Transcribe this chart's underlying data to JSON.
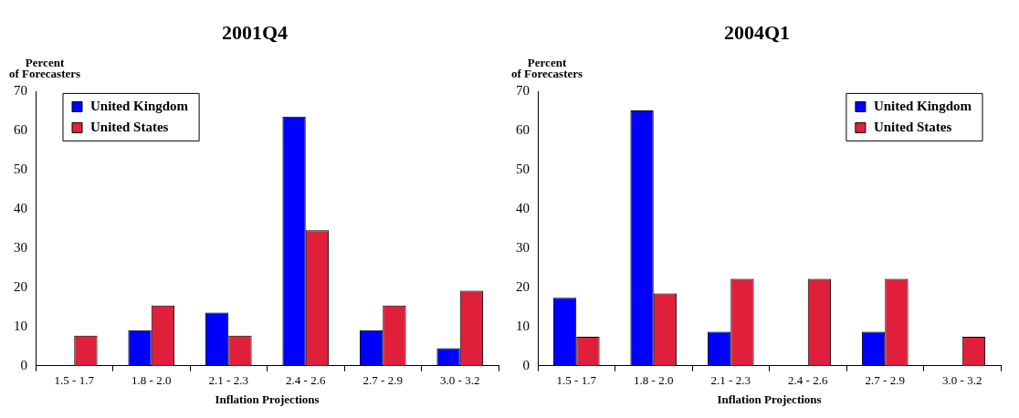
{
  "chart_data": [
    {
      "type": "bar",
      "title": "2001Q4",
      "xlabel": "Inflation Projections",
      "ylabel": "Percent\nof Forecasters",
      "categories": [
        "1.5 - 1.7",
        "1.8 - 2.0",
        "2.1 - 2.3",
        "2.4 - 2.6",
        "2.7 - 2.9",
        "3.0 - 3.2"
      ],
      "series": [
        {
          "name": "United Kingdom",
          "color": "#0000ff",
          "values": [
            0,
            9.1,
            13.6,
            63.6,
            9.1,
            4.5
          ]
        },
        {
          "name": "United States",
          "color": "#e0203a",
          "values": [
            7.7,
            15.4,
            7.7,
            34.6,
            15.4,
            19.2
          ]
        }
      ],
      "ylim": [
        0,
        70
      ],
      "yticks": [
        0,
        10,
        20,
        30,
        40,
        50,
        60,
        70
      ],
      "legend": "top left"
    },
    {
      "type": "bar",
      "title": "2004Q1",
      "xlabel": "Inflation Projections",
      "ylabel": "Percent\nof Forecasters",
      "categories": [
        "1.5 - 1.7",
        "1.8 - 2.0",
        "2.1 - 2.3",
        "2.4 - 2.6",
        "2.7 - 2.9",
        "3.0 - 3.2"
      ],
      "series": [
        {
          "name": "United Kingdom",
          "color": "#0000ff",
          "values": [
            17.4,
            65.2,
            8.7,
            0,
            8.7,
            0
          ]
        },
        {
          "name": "United States",
          "color": "#e0203a",
          "values": [
            7.4,
            18.5,
            22.2,
            22.2,
            22.2,
            7.4
          ]
        }
      ],
      "ylim": [
        0,
        70
      ],
      "yticks": [
        0,
        10,
        20,
        30,
        40,
        50,
        60,
        70
      ],
      "legend": "top right"
    }
  ]
}
